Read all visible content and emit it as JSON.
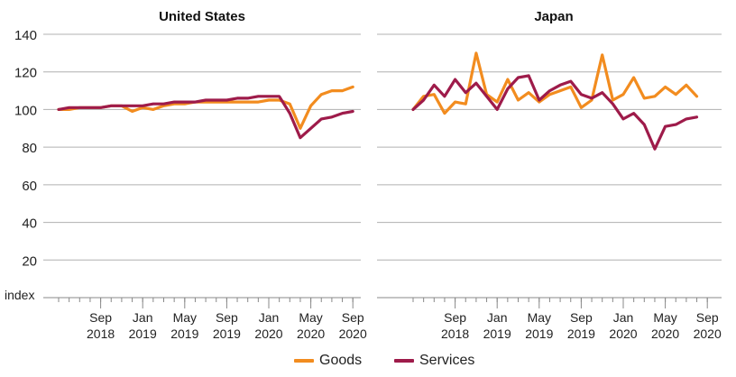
{
  "chart_data": {
    "type": "line",
    "y_unit_label": "index",
    "ylim": [
      0,
      140
    ],
    "yticks": [
      20,
      40,
      60,
      80,
      100,
      120,
      140
    ],
    "x_start": "2018-05",
    "x_end": "2020-09",
    "x_tick_labels": [
      {
        "month": "Sep",
        "year": "2018"
      },
      {
        "month": "Jan",
        "year": "2019"
      },
      {
        "month": "May",
        "year": "2019"
      },
      {
        "month": "Sep",
        "year": "2019"
      },
      {
        "month": "Jan",
        "year": "2020"
      },
      {
        "month": "May",
        "year": "2020"
      },
      {
        "month": "Sep",
        "year": "2020"
      }
    ],
    "x_tick_month_index": [
      4,
      8,
      12,
      16,
      20,
      24,
      28
    ],
    "colors": {
      "Goods": "#f28c1f",
      "Services": "#9e1b4a"
    },
    "legend": [
      "Goods",
      "Services"
    ],
    "panels": [
      {
        "title": "United States",
        "series": [
          {
            "name": "Goods",
            "start_index": 0,
            "values": [
              100,
              100,
              101,
              101,
              101,
              102,
              102,
              99,
              101,
              100,
              102,
              103,
              103,
              104,
              104,
              104,
              104,
              104,
              104,
              104,
              105,
              105,
              103,
              90,
              102,
              108,
              110,
              110,
              112
            ]
          },
          {
            "name": "Services",
            "start_index": 0,
            "values": [
              100,
              101,
              101,
              101,
              101,
              102,
              102,
              102,
              102,
              103,
              103,
              104,
              104,
              104,
              105,
              105,
              105,
              106,
              106,
              107,
              107,
              107,
              98,
              85,
              90,
              95,
              96,
              98,
              99
            ]
          }
        ]
      },
      {
        "title": "Japan",
        "series": [
          {
            "name": "Goods",
            "start_index": 0,
            "values": [
              100,
              107,
              108,
              98,
              104,
              103,
              130,
              108,
              104,
              116,
              105,
              109,
              104,
              108,
              110,
              112,
              101,
              105,
              129,
              105,
              108,
              117,
              106,
              107,
              112,
              108,
              113,
              107
            ]
          },
          {
            "name": "Services",
            "start_index": 0,
            "values": [
              100,
              105,
              113,
              107,
              116,
              109,
              114,
              107,
              100,
              111,
              117,
              118,
              105,
              110,
              113,
              115,
              108,
              106,
              109,
              103,
              95,
              98,
              92,
              79,
              91,
              92,
              95,
              96
            ]
          }
        ]
      }
    ]
  }
}
